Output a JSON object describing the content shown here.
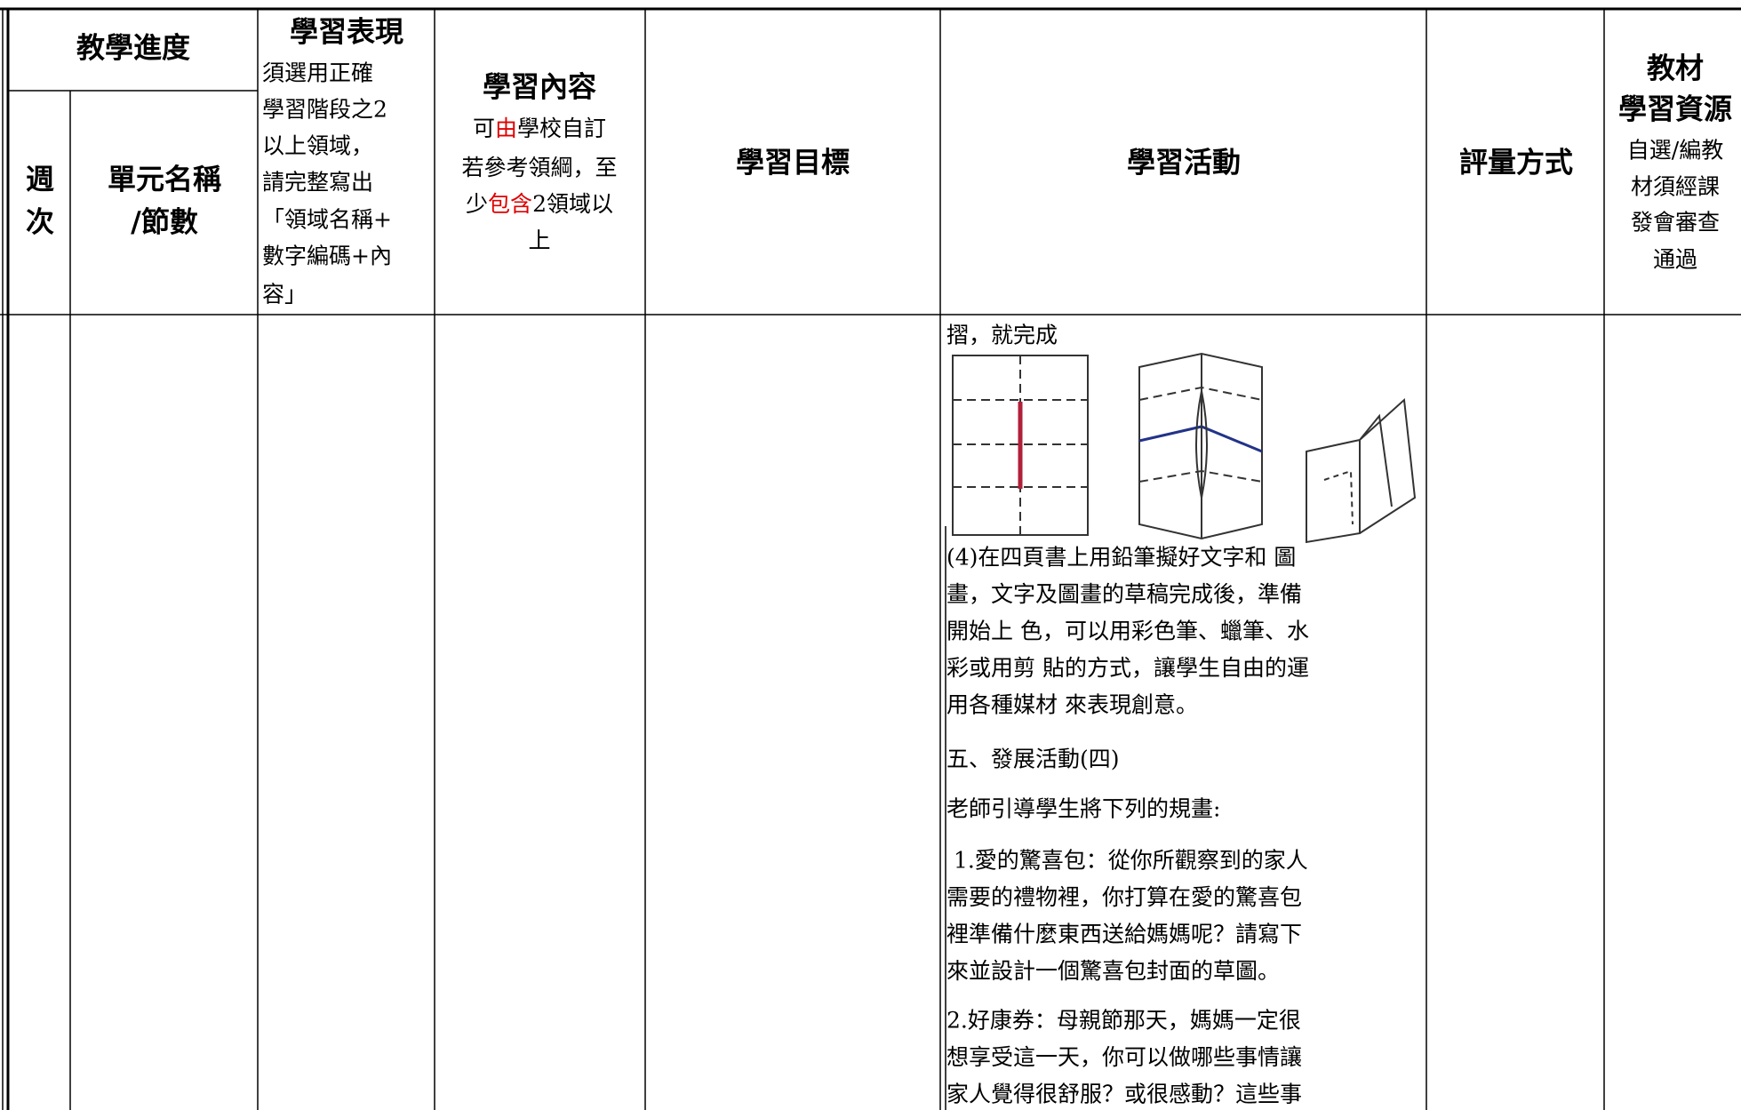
{
  "header": {
    "progress": "教學進度",
    "week": [
      "週",
      "次"
    ],
    "unit": [
      "單元名稱",
      "/節數"
    ],
    "performance": {
      "title": "學習表現",
      "note": [
        "須選用正確",
        "學習階段之2",
        "以上領域，",
        "請完整寫出",
        "「領域名稱+",
        "數字編碼+內",
        "容」"
      ]
    },
    "content": {
      "title": "學習內容",
      "note": [
        [
          {
            "text": "可"
          },
          {
            "text": "由",
            "color": "#e00000"
          },
          {
            "text": "學校自訂"
          }
        ],
        [
          {
            "text": "若參考領綱，至"
          }
        ],
        [
          {
            "text": "少"
          },
          {
            "text": "包含",
            "color": "#e00000"
          },
          {
            "text": "2領域以"
          }
        ],
        [
          {
            "text": "上"
          }
        ]
      ]
    },
    "objective": "學習目標",
    "activity": "學習活動",
    "assessment": "評量方式",
    "resources": {
      "title": [
        "教材",
        "學習資源"
      ],
      "note": [
        "自選/編教",
        "材須經課",
        "發會審查",
        "通過"
      ]
    }
  },
  "body": {
    "activity": {
      "paragraphs": [
        [
          "摺，就完成"
        ],
        [
          "(4)在四頁書上用鉛筆擬好文字和 圖",
          "畫，文字及圖畫的草稿完成後，準備",
          "開始上 色，可以用彩色筆、蠟筆、水",
          "彩或用剪 貼的方式，讓學生自由的運",
          "用各種媒材 來表現創意。"
        ],
        [
          "五、發展活動(四)"
        ],
        [
          "老師引導學生將下列的規畫:"
        ],
        [
          " 1.愛的驚喜包：從你所觀察到的家人",
          "需要的禮物裡，你打算在愛的驚喜包",
          "裡準備什麼東西送給媽媽呢？請寫下",
          "來並設計一個驚喜包封面的草圖。"
        ],
        [
          "2.好康券：母親節那天，媽媽一定很",
          "想享受這一天，你可以做哪些事情讓",
          "家人覺得很舒服？或很感動？這些事"
        ]
      ]
    }
  }
}
